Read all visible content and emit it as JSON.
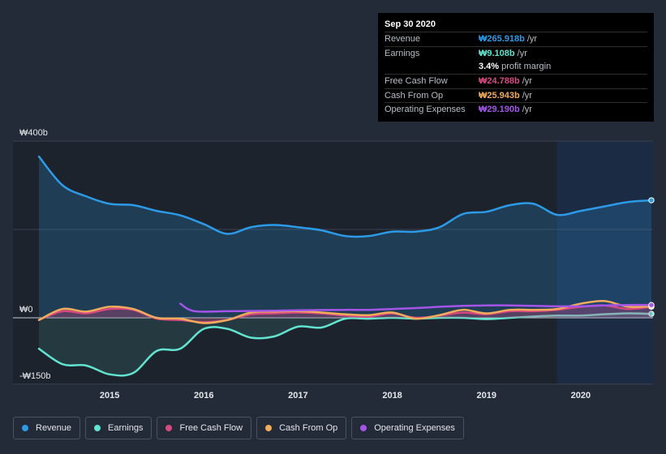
{
  "tooltip": {
    "date": "Sep 30 2020",
    "rows": [
      {
        "label": "Revenue",
        "value": "₩265.918b",
        "unit": "/yr",
        "color": "#2c9ae6"
      },
      {
        "label": "Earnings",
        "value": "₩9.108b",
        "unit": "/yr",
        "color": "#62e3cf"
      },
      {
        "label": "",
        "value": "3.4%",
        "unit": "profit margin",
        "color": "#ffffff"
      },
      {
        "label": "Free Cash Flow",
        "value": "₩24.788b",
        "unit": "/yr",
        "color": "#d8497f"
      },
      {
        "label": "Cash From Op",
        "value": "₩25.943b",
        "unit": "/yr",
        "color": "#f0ac5c"
      },
      {
        "label": "Operating Expenses",
        "value": "₩29.190b",
        "unit": "/yr",
        "color": "#a455e8"
      }
    ]
  },
  "legend": [
    {
      "label": "Revenue",
      "color": "#2c9ae6"
    },
    {
      "label": "Earnings",
      "color": "#62e3cf"
    },
    {
      "label": "Free Cash Flow",
      "color": "#d8497f"
    },
    {
      "label": "Cash From Op",
      "color": "#f0ac5c"
    },
    {
      "label": "Operating Expenses",
      "color": "#a455e8"
    }
  ],
  "chart_data": {
    "type": "area",
    "y_tick_labels": [
      "₩400b",
      "₩0",
      "-₩150b"
    ],
    "x_tick_labels": [
      "2015",
      "2016",
      "2017",
      "2018",
      "2019",
      "2020"
    ],
    "ylim": [
      -150,
      400
    ],
    "xlim": [
      2014.25,
      2020.75
    ],
    "x_ticks": [
      2015,
      2016,
      2017,
      2018,
      2019,
      2020
    ],
    "y_ticks": [
      400,
      200,
      0,
      -150
    ],
    "grid": true,
    "forecast_highlight_start": 2019.75,
    "series": [
      {
        "name": "Revenue",
        "color": "#2c9ae6",
        "fill": true,
        "points": [
          [
            2014.25,
            365
          ],
          [
            2014.5,
            300
          ],
          [
            2014.75,
            275
          ],
          [
            2015.0,
            258
          ],
          [
            2015.25,
            255
          ],
          [
            2015.5,
            242
          ],
          [
            2015.75,
            232
          ],
          [
            2016.0,
            212
          ],
          [
            2016.25,
            190
          ],
          [
            2016.5,
            205
          ],
          [
            2016.75,
            210
          ],
          [
            2017.0,
            205
          ],
          [
            2017.25,
            198
          ],
          [
            2017.5,
            185
          ],
          [
            2017.75,
            185
          ],
          [
            2018.0,
            195
          ],
          [
            2018.25,
            195
          ],
          [
            2018.5,
            205
          ],
          [
            2018.75,
            235
          ],
          [
            2019.0,
            240
          ],
          [
            2019.25,
            255
          ],
          [
            2019.5,
            258
          ],
          [
            2019.75,
            233
          ],
          [
            2020.0,
            242
          ],
          [
            2020.25,
            252
          ],
          [
            2020.5,
            262
          ],
          [
            2020.75,
            266
          ]
        ]
      },
      {
        "name": "Earnings",
        "color": "#62e3cf",
        "fill": true,
        "points": [
          [
            2014.25,
            -70
          ],
          [
            2014.5,
            -105
          ],
          [
            2014.75,
            -108
          ],
          [
            2015.0,
            -128
          ],
          [
            2015.25,
            -125
          ],
          [
            2015.5,
            -75
          ],
          [
            2015.75,
            -70
          ],
          [
            2016.0,
            -25
          ],
          [
            2016.25,
            -25
          ],
          [
            2016.5,
            -45
          ],
          [
            2016.75,
            -42
          ],
          [
            2017.0,
            -20
          ],
          [
            2017.25,
            -22
          ],
          [
            2017.5,
            -2
          ],
          [
            2017.75,
            -2
          ],
          [
            2018.0,
            0
          ],
          [
            2018.25,
            -2
          ],
          [
            2018.5,
            0
          ],
          [
            2018.75,
            0
          ],
          [
            2019.0,
            -3
          ],
          [
            2019.25,
            0
          ],
          [
            2019.5,
            3
          ],
          [
            2019.75,
            5
          ],
          [
            2020.0,
            5
          ],
          [
            2020.25,
            8
          ],
          [
            2020.5,
            10
          ],
          [
            2020.75,
            9
          ]
        ]
      },
      {
        "name": "Free Cash Flow",
        "color": "#d8497f",
        "fill": true,
        "points": [
          [
            2014.25,
            -5
          ],
          [
            2014.5,
            15
          ],
          [
            2014.75,
            10
          ],
          [
            2015.0,
            20
          ],
          [
            2015.25,
            18
          ],
          [
            2015.5,
            -2
          ],
          [
            2015.75,
            -5
          ],
          [
            2016.0,
            -10
          ],
          [
            2016.25,
            -5
          ],
          [
            2016.5,
            8
          ],
          [
            2016.75,
            10
          ],
          [
            2017.0,
            12
          ],
          [
            2017.25,
            10
          ],
          [
            2017.5,
            5
          ],
          [
            2017.75,
            3
          ],
          [
            2018.0,
            10
          ],
          [
            2018.25,
            0
          ],
          [
            2018.5,
            5
          ],
          [
            2018.75,
            12
          ],
          [
            2019.0,
            8
          ],
          [
            2019.25,
            15
          ],
          [
            2019.5,
            15
          ],
          [
            2019.75,
            18
          ],
          [
            2020.0,
            25
          ],
          [
            2020.25,
            28
          ],
          [
            2020.5,
            20
          ],
          [
            2020.75,
            25
          ]
        ]
      },
      {
        "name": "Cash From Op",
        "color": "#f0ac5c",
        "fill": false,
        "points": [
          [
            2014.25,
            -5
          ],
          [
            2014.5,
            20
          ],
          [
            2014.75,
            14
          ],
          [
            2015.0,
            25
          ],
          [
            2015.25,
            20
          ],
          [
            2015.5,
            0
          ],
          [
            2015.75,
            -2
          ],
          [
            2016.0,
            -12
          ],
          [
            2016.25,
            -5
          ],
          [
            2016.5,
            12
          ],
          [
            2016.75,
            14
          ],
          [
            2017.0,
            15
          ],
          [
            2017.25,
            12
          ],
          [
            2017.5,
            8
          ],
          [
            2017.75,
            6
          ],
          [
            2018.0,
            12
          ],
          [
            2018.25,
            -2
          ],
          [
            2018.5,
            6
          ],
          [
            2018.75,
            18
          ],
          [
            2019.0,
            10
          ],
          [
            2019.25,
            18
          ],
          [
            2019.5,
            18
          ],
          [
            2019.75,
            20
          ],
          [
            2020.0,
            32
          ],
          [
            2020.25,
            38
          ],
          [
            2020.5,
            25
          ],
          [
            2020.75,
            26
          ]
        ]
      },
      {
        "name": "Operating Expenses",
        "color": "#a455e8",
        "fill": false,
        "points": [
          [
            2015.75,
            32
          ],
          [
            2015.9,
            15
          ],
          [
            2016.25,
            15
          ],
          [
            2016.75,
            16
          ],
          [
            2017.0,
            17
          ],
          [
            2017.5,
            18
          ],
          [
            2017.75,
            18
          ],
          [
            2018.0,
            20
          ],
          [
            2018.25,
            22
          ],
          [
            2018.5,
            25
          ],
          [
            2018.75,
            27
          ],
          [
            2019.0,
            28
          ],
          [
            2019.25,
            28
          ],
          [
            2019.5,
            27
          ],
          [
            2019.75,
            26
          ],
          [
            2020.0,
            26
          ],
          [
            2020.25,
            28
          ],
          [
            2020.5,
            29
          ],
          [
            2020.75,
            29
          ]
        ]
      }
    ]
  }
}
